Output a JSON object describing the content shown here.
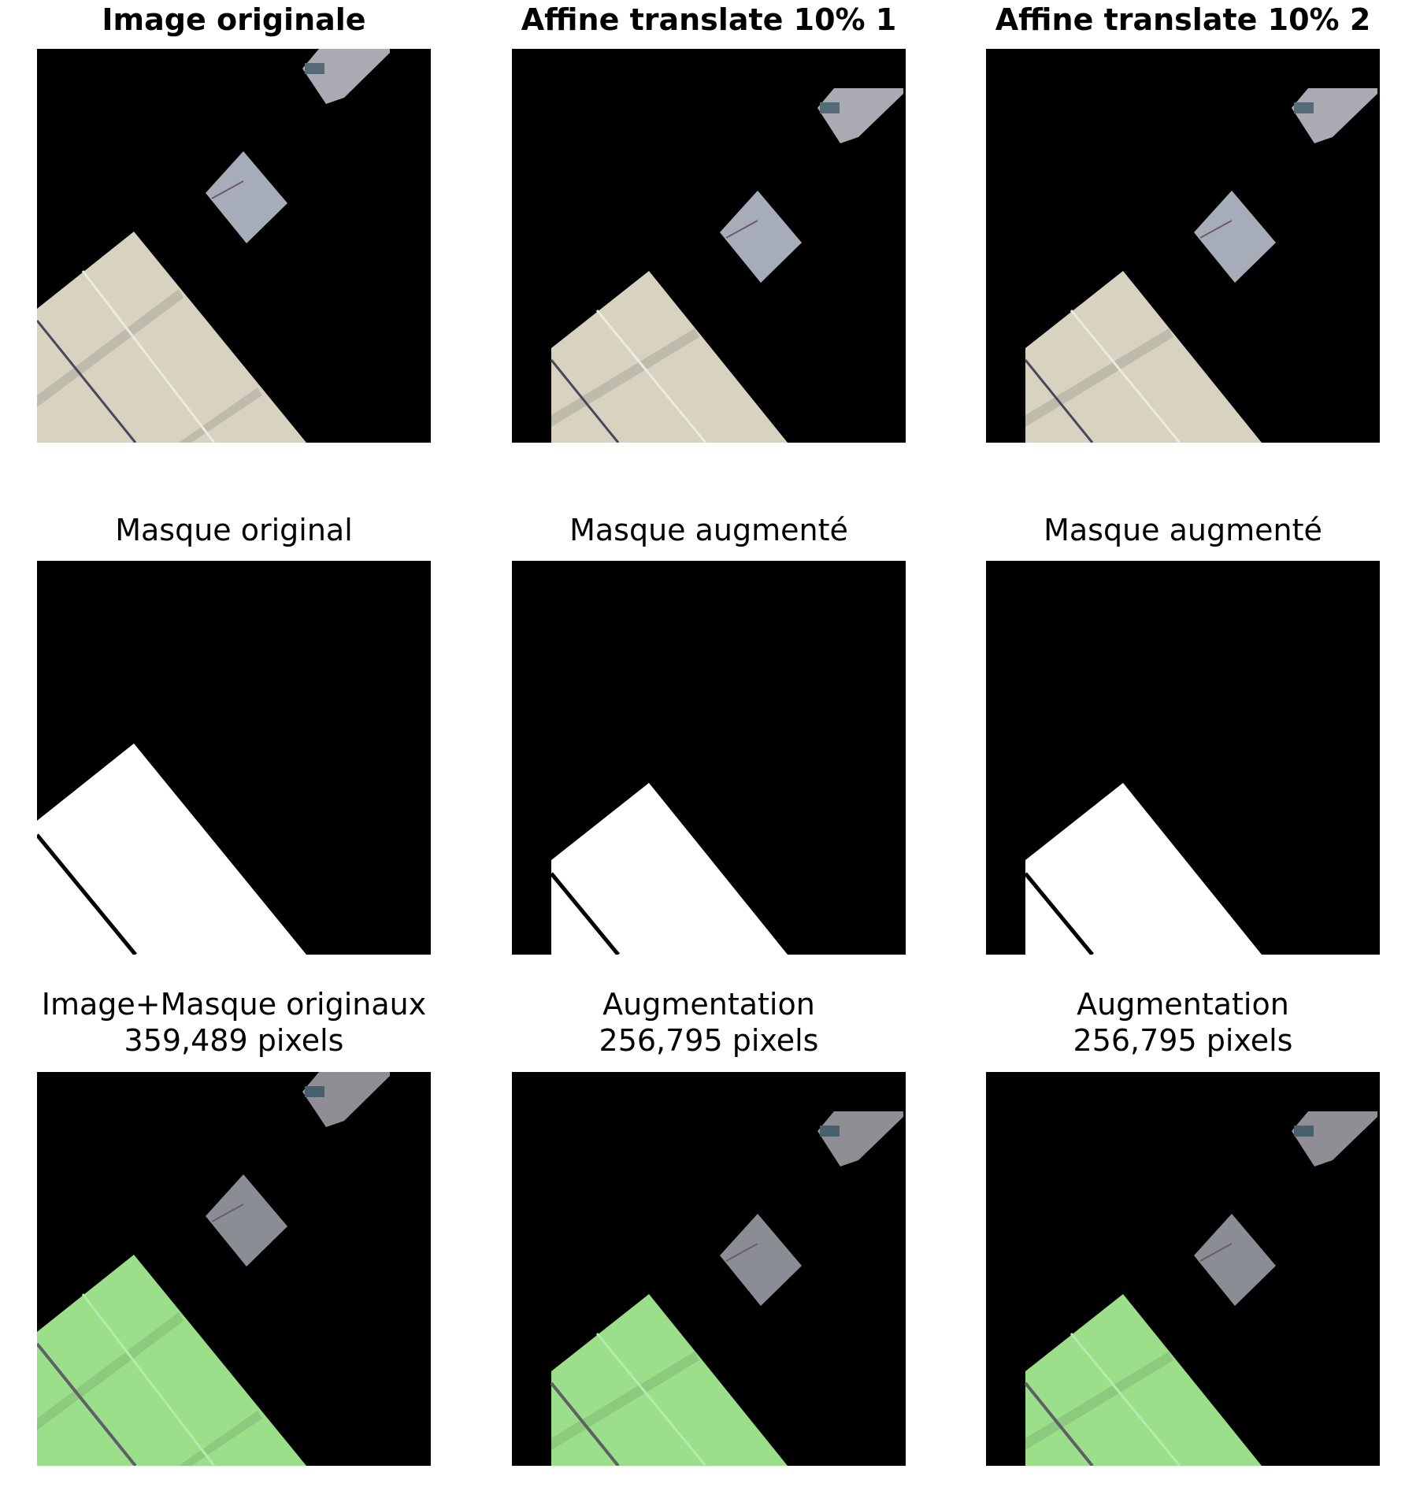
{
  "rows": [
    {
      "titles": [
        {
          "lines": [
            "Image originale"
          ]
        },
        {
          "lines": [
            "Affine translate 10% 1"
          ]
        },
        {
          "lines": [
            "Affine translate 10% 2"
          ]
        }
      ]
    },
    {
      "titles": [
        {
          "lines": [
            "Masque original"
          ]
        },
        {
          "lines": [
            "Masque augmenté"
          ]
        },
        {
          "lines": [
            "Masque augmenté"
          ]
        }
      ]
    },
    {
      "titles": [
        {
          "lines": [
            "Image+Masque originaux",
            "359,489 pixels"
          ]
        },
        {
          "lines": [
            "Augmentation",
            "256,795 pixels"
          ]
        },
        {
          "lines": [
            "Augmentation",
            "256,795 pixels"
          ]
        }
      ]
    }
  ],
  "colors": {
    "background": "#000000",
    "roof": "#d8d3c1",
    "roof_stripe": "#b3b0a3",
    "mask": "#ffffff",
    "overlay_green": "#9bdf8b",
    "small_building": "#a6aab2"
  }
}
